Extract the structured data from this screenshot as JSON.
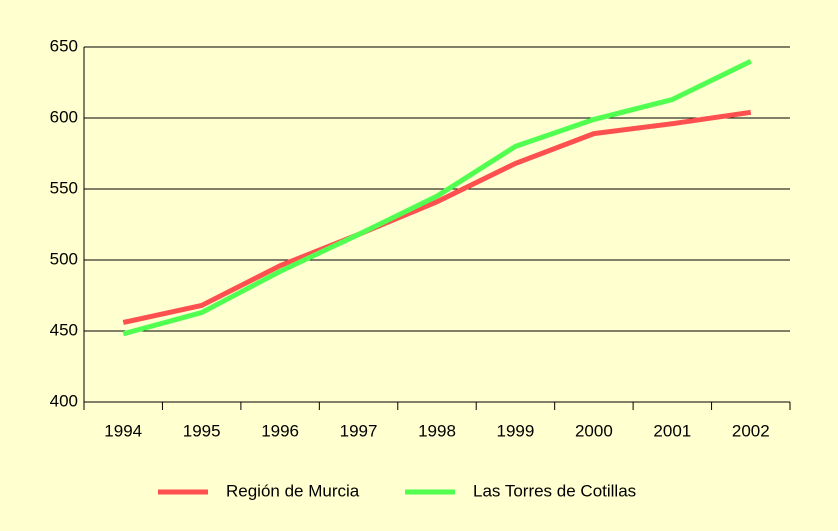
{
  "chart_data": {
    "type": "line",
    "categories": [
      "1994",
      "1995",
      "1996",
      "1997",
      "1998",
      "1999",
      "2000",
      "2001",
      "2002"
    ],
    "series": [
      {
        "name": "Región de Murcia",
        "color": "#ff5050",
        "values": [
          456,
          468,
          496,
          518,
          541,
          568,
          589,
          596,
          604
        ]
      },
      {
        "name": "Las Torres de Cotillas",
        "color": "#50ff50",
        "values": [
          448,
          463,
          492,
          518,
          545,
          580,
          599,
          613,
          640
        ]
      }
    ],
    "ylim": [
      400,
      650
    ],
    "yticks": [
      400,
      450,
      500,
      550,
      600,
      650
    ],
    "grid": true,
    "legend": "bottom"
  }
}
